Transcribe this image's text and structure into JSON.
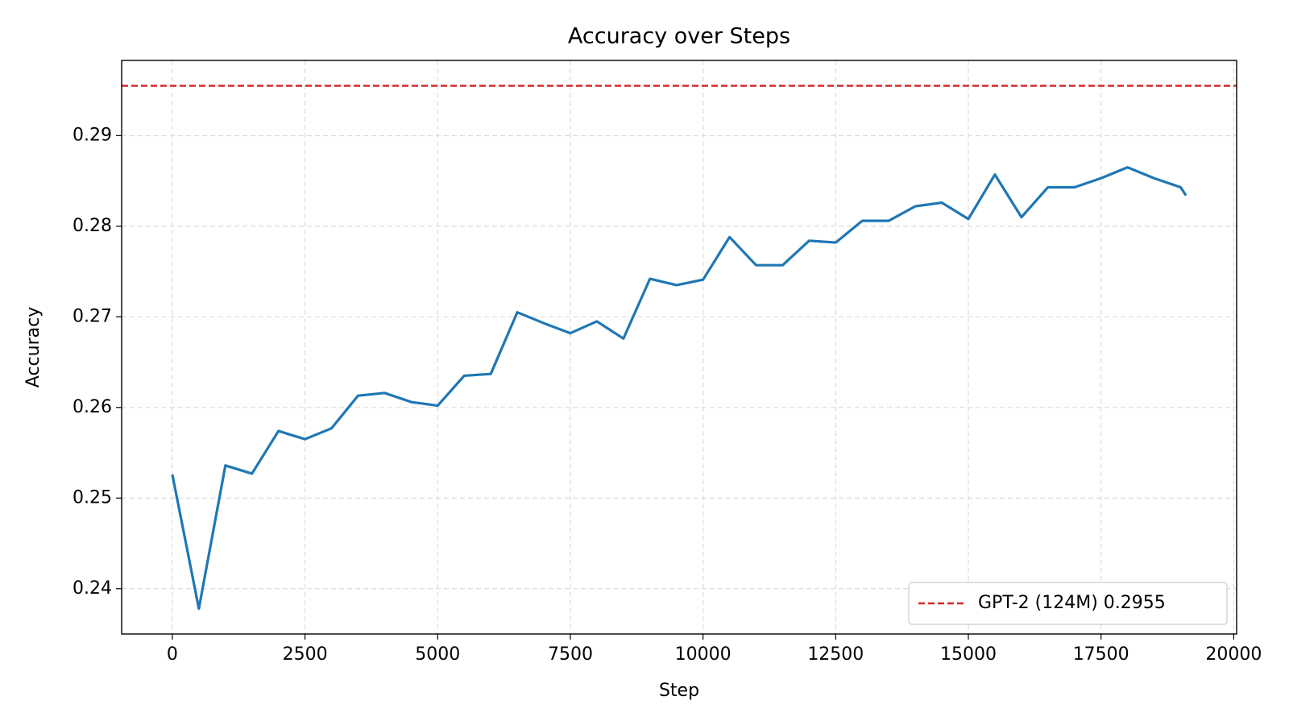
{
  "chart_data": {
    "type": "line",
    "title": "Accuracy over Steps",
    "x_label": "Step",
    "y_label": "Accuracy",
    "x": [
      0,
      500,
      1000,
      1500,
      2000,
      2500,
      3000,
      3500,
      4000,
      4500,
      5000,
      5500,
      6000,
      6500,
      7000,
      7500,
      8000,
      8500,
      9000,
      9500,
      10000,
      10500,
      11000,
      11500,
      12000,
      12500,
      13000,
      13500,
      14000,
      14500,
      15000,
      15500,
      16000,
      16500,
      17000,
      17500,
      18000,
      18500,
      19000,
      19100
    ],
    "series": [
      {
        "color": "#1f77b4",
        "values": [
          0.2526,
          0.2378,
          0.2536,
          0.2527,
          0.2574,
          0.2565,
          0.2577,
          0.2613,
          0.2616,
          0.2606,
          0.2602,
          0.2635,
          0.2637,
          0.2705,
          0.2693,
          0.2682,
          0.2695,
          0.2676,
          0.2742,
          0.2735,
          0.2741,
          0.2788,
          0.2757,
          0.2757,
          0.2784,
          0.2782,
          0.2806,
          0.2806,
          0.2822,
          0.2826,
          0.2808,
          0.2857,
          0.281,
          0.2843,
          0.2843,
          0.2853,
          0.2865,
          0.2853,
          0.2843,
          0.2834
        ]
      }
    ],
    "reference_line": {
      "value": 0.2955,
      "label": "GPT-2 (124M) 0.2955",
      "color": "#d62728"
    },
    "xlim": [
      -955,
      20055
    ],
    "ylim": [
      0.235,
      0.2983
    ],
    "xticks": [
      0,
      2500,
      5000,
      7500,
      10000,
      12500,
      15000,
      17500,
      20000
    ],
    "yticks": [
      0.24,
      0.25,
      0.26,
      0.27,
      0.28,
      0.29
    ],
    "grid": true,
    "legend": "lower right"
  }
}
